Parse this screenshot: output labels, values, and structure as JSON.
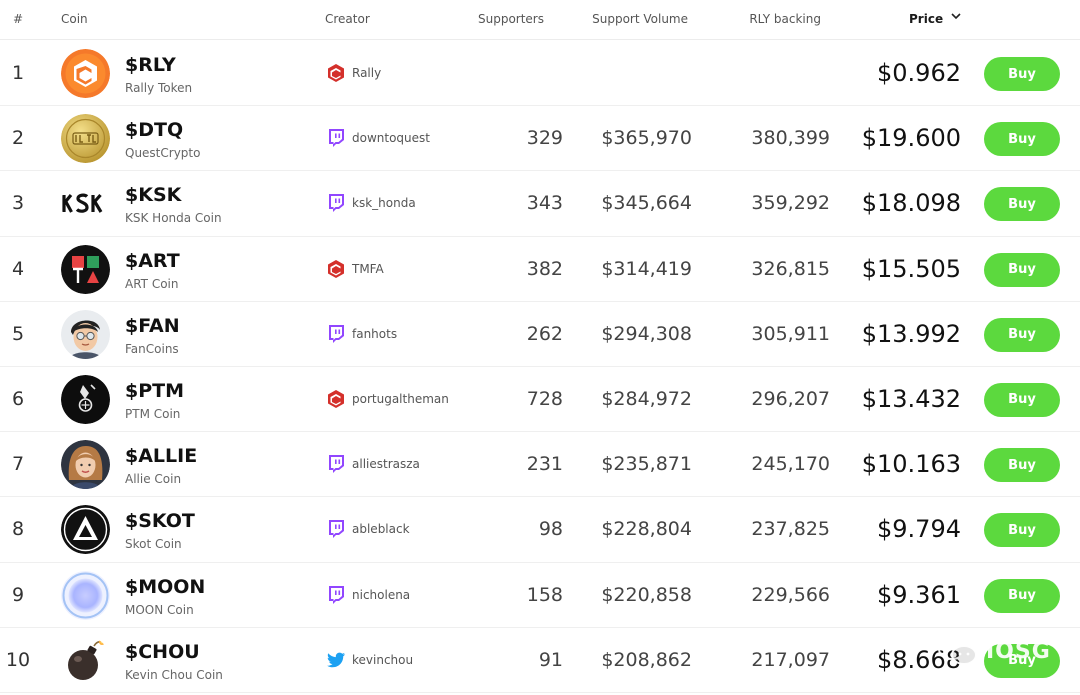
{
  "header": {
    "num": "#",
    "coin": "Coin",
    "creator": "Creator",
    "supporters": "Supporters",
    "volume": "Support Volume",
    "rly_backing": "RLY backing",
    "price": "Price"
  },
  "colors": {
    "buy_green": "#5cd93e",
    "rally_red": "#d4302b",
    "twitch_purple": "#9146ff",
    "twitter_blue": "#1da1f2"
  },
  "rows": [
    {
      "rank": "1",
      "symbol": "$RLY",
      "name": "Rally Token",
      "creator_platform": "rally",
      "creator": "Rally",
      "supporters": "",
      "volume": "",
      "rly": "",
      "price": "$0.962",
      "buy": "Buy"
    },
    {
      "rank": "2",
      "symbol": "$DTQ",
      "name": "QuestCrypto",
      "creator_platform": "twitch",
      "creator": "downtoquest",
      "supporters": "329",
      "volume": "$365,970",
      "rly": "380,399",
      "price": "$19.600",
      "buy": "Buy"
    },
    {
      "rank": "3",
      "symbol": "$KSK",
      "name": "KSK Honda Coin",
      "creator_platform": "twitch",
      "creator": "ksk_honda",
      "supporters": "343",
      "volume": "$345,664",
      "rly": "359,292",
      "price": "$18.098",
      "buy": "Buy"
    },
    {
      "rank": "4",
      "symbol": "$ART",
      "name": "ART Coin",
      "creator_platform": "rally",
      "creator": "TMFA",
      "supporters": "382",
      "volume": "$314,419",
      "rly": "326,815",
      "price": "$15.505",
      "buy": "Buy"
    },
    {
      "rank": "5",
      "symbol": "$FAN",
      "name": "FanCoins",
      "creator_platform": "twitch",
      "creator": "fanhots",
      "supporters": "262",
      "volume": "$294,308",
      "rly": "305,911",
      "price": "$13.992",
      "buy": "Buy"
    },
    {
      "rank": "6",
      "symbol": "$PTM",
      "name": "PTM Coin",
      "creator_platform": "rally",
      "creator": "portugaltheman",
      "supporters": "728",
      "volume": "$284,972",
      "rly": "296,207",
      "price": "$13.432",
      "buy": "Buy"
    },
    {
      "rank": "7",
      "symbol": "$ALLIE",
      "name": "Allie Coin",
      "creator_platform": "twitch",
      "creator": "alliestrasza",
      "supporters": "231",
      "volume": "$235,871",
      "rly": "245,170",
      "price": "$10.163",
      "buy": "Buy"
    },
    {
      "rank": "8",
      "symbol": "$SKOT",
      "name": "Skot Coin",
      "creator_platform": "twitch",
      "creator": "ableblack",
      "supporters": "98",
      "volume": "$228,804",
      "rly": "237,825",
      "price": "$9.794",
      "buy": "Buy"
    },
    {
      "rank": "9",
      "symbol": "$MOON",
      "name": "MOON Coin",
      "creator_platform": "twitch",
      "creator": "nicholena",
      "supporters": "158",
      "volume": "$220,858",
      "rly": "229,566",
      "price": "$9.361",
      "buy": "Buy"
    },
    {
      "rank": "10",
      "symbol": "$CHOU",
      "name": "Kevin Chou Coin",
      "creator_platform": "twitter",
      "creator": "kevinchou",
      "supporters": "91",
      "volume": "$208,862",
      "rly": "217,097",
      "price": "$8.668",
      "buy": "Buy"
    }
  ],
  "watermark": {
    "text": "IOSG"
  }
}
